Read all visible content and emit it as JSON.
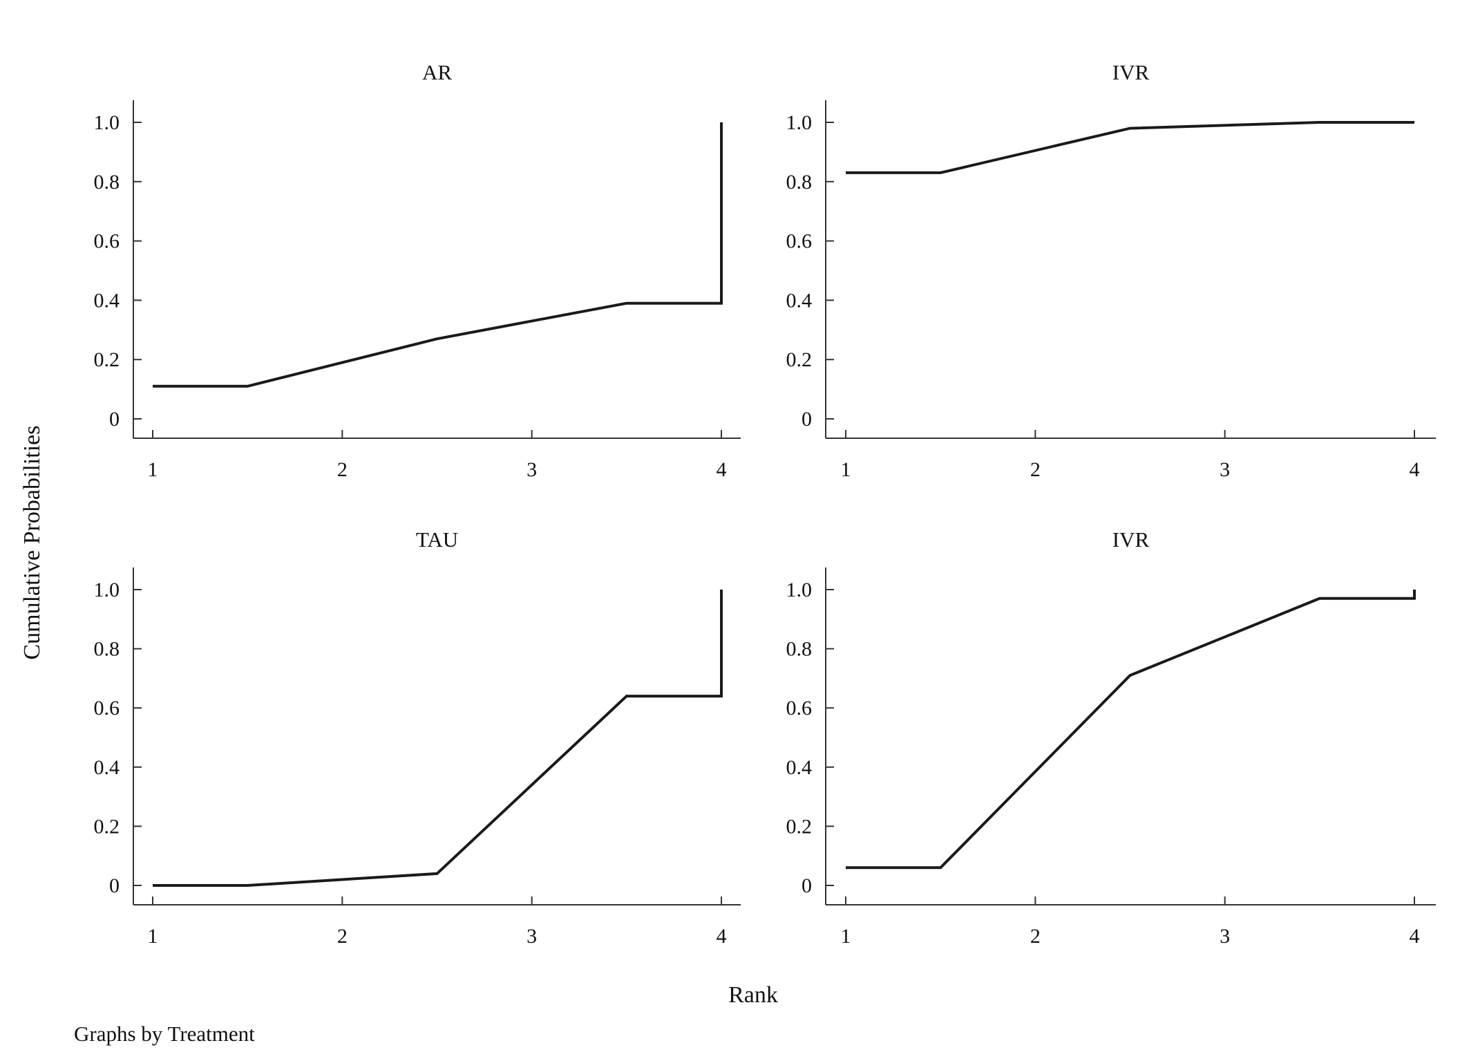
{
  "chart_data": {
    "type": "line",
    "y_axis_title": "Cumulative Probabilities",
    "x_axis_title": "Rank",
    "note": "Graphs by Treatment",
    "x_ticks": [
      "1",
      "2",
      "3",
      "4"
    ],
    "y_ticks": [
      "0",
      "0.2",
      "0.4",
      "0.6",
      "0.8",
      "1.0"
    ],
    "xlim": [
      1,
      4
    ],
    "ylim": [
      0,
      1
    ],
    "grid": false,
    "panels": [
      {
        "title": "AR",
        "points": [
          [
            1,
            0.11
          ],
          [
            1.5,
            0.11
          ],
          [
            2.5,
            0.27
          ],
          [
            3.5,
            0.39
          ],
          [
            4,
            0.39
          ],
          [
            4,
            1.0
          ]
        ]
      },
      {
        "title": "IVR",
        "points": [
          [
            1,
            0.83
          ],
          [
            1.5,
            0.83
          ],
          [
            2.5,
            0.98
          ],
          [
            3.5,
            1.0
          ],
          [
            4,
            1.0
          ]
        ]
      },
      {
        "title": "TAU",
        "points": [
          [
            1,
            0.0
          ],
          [
            1.5,
            0.0
          ],
          [
            2.5,
            0.04
          ],
          [
            3.5,
            0.64
          ],
          [
            4,
            0.64
          ],
          [
            4,
            1.0
          ]
        ]
      },
      {
        "title": "IVR",
        "points": [
          [
            1,
            0.06
          ],
          [
            1.5,
            0.06
          ],
          [
            2.5,
            0.71
          ],
          [
            3.5,
            0.97
          ],
          [
            4,
            0.97
          ],
          [
            4,
            1.0
          ]
        ]
      }
    ]
  }
}
